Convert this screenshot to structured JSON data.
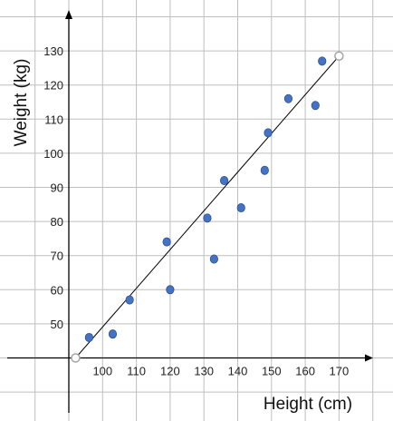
{
  "chart_data": {
    "type": "scatter",
    "title": "",
    "xlabel": "Height (cm)",
    "ylabel": "Weight (kg)",
    "xlim": [
      90,
      180
    ],
    "ylim": [
      40,
      140
    ],
    "grid": true,
    "x_ticks": [
      100,
      110,
      120,
      130,
      140,
      150,
      160,
      170
    ],
    "y_ticks": [
      50,
      60,
      70,
      80,
      90,
      100,
      110,
      120,
      130
    ],
    "points": [
      {
        "x": 96,
        "y": 46
      },
      {
        "x": 103,
        "y": 47
      },
      {
        "x": 108,
        "y": 57
      },
      {
        "x": 119,
        "y": 74
      },
      {
        "x": 120,
        "y": 60
      },
      {
        "x": 131,
        "y": 81
      },
      {
        "x": 133,
        "y": 69
      },
      {
        "x": 136,
        "y": 92
      },
      {
        "x": 141,
        "y": 84
      },
      {
        "x": 148,
        "y": 95
      },
      {
        "x": 149,
        "y": 106
      },
      {
        "x": 155,
        "y": 116
      },
      {
        "x": 163,
        "y": 114
      },
      {
        "x": 165,
        "y": 127
      }
    ],
    "trend_line": {
      "x1": 92,
      "y1": 40,
      "x2": 170,
      "y2": 128.5
    },
    "colors": {
      "point_fill": "#4472c4",
      "point_stroke": "#2f528f",
      "grid": "#bfbfbf",
      "axis": "#000000",
      "trend_line": "#000000",
      "endpoint_marker": "#a6a6a6"
    }
  }
}
